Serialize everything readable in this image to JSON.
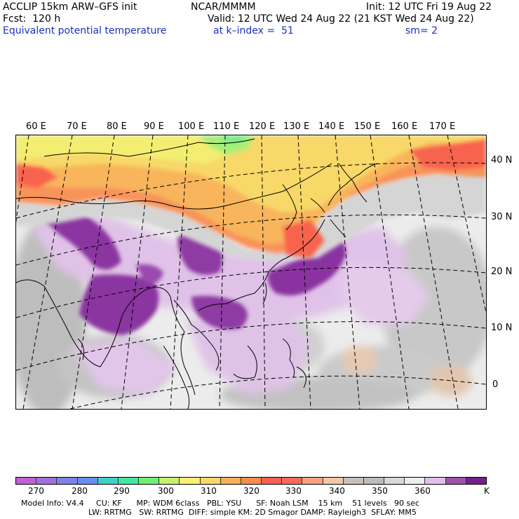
{
  "header": {
    "model": "ACCLIP 15km ARW–GFS init",
    "org": "NCAR/MMMM",
    "init": "Init: 12 UTC Fri 19 Aug 22",
    "fcst": "Fcst:  120 h",
    "valid": "Valid: 12 UTC Wed 24 Aug 22 (21 KST Wed 24 Aug 22)",
    "field": "Equivalent potential temperature",
    "level": "at k–index =  51",
    "smooth": "sm= 2"
  },
  "longitude_labels": [
    "60 E",
    "70 E",
    "80 E",
    "90 E",
    "100 E",
    "110 E",
    "120 E",
    "130 E",
    "140 E",
    "150 E",
    "160 E",
    "170 E"
  ],
  "latitude_labels": [
    "40 N",
    "30 N",
    "20 N",
    "10 N",
    "0"
  ],
  "colorbar": {
    "unit": "K",
    "tick_labels": [
      "270",
      "280",
      "290",
      "300",
      "310",
      "320",
      "330",
      "340",
      "350",
      "360"
    ],
    "colors": [
      "#c060d8",
      "#a070e0",
      "#8080e8",
      "#6a8ef0",
      "#40d0c8",
      "#40e8a0",
      "#70f070",
      "#c8f070",
      "#f8f070",
      "#f8d868",
      "#f8b058",
      "#f88c50",
      "#f86050",
      "#f86a58",
      "#f8a080",
      "#f0c8a8",
      "#c8c0b8",
      "#bcbcbc",
      "#d8d8d8",
      "#ececec",
      "#e0c0e8",
      "#a050b0",
      "#7a1e8c"
    ]
  },
  "footer": {
    "line1": "Model Info: V4.4     CU: KF      MP: WDM 6class   PBL: YSU      SF: Noah LSM    15 km    51 levels   90 sec",
    "line2": "LW: RRTMG   SW: RRTMG  DIFF: simple KM: 2D Smagor DAMP: Rayleigh3  SFLAY: MM5"
  }
}
